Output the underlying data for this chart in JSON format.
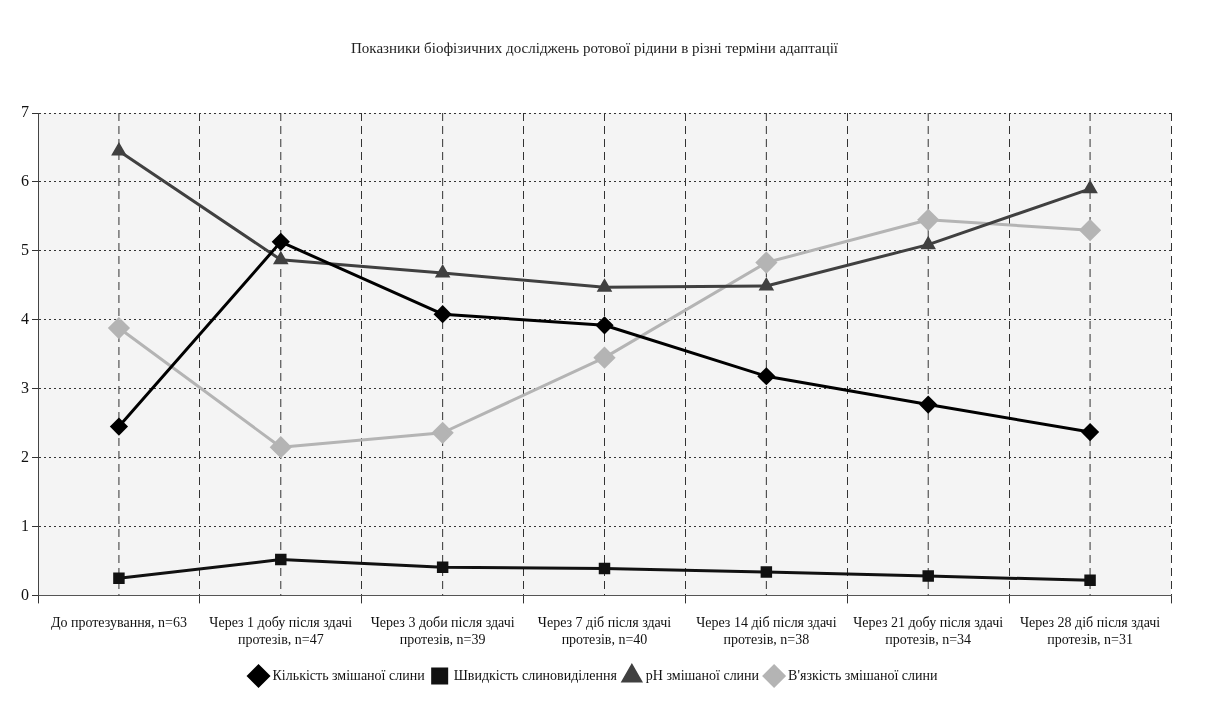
{
  "chart_data": {
    "type": "line",
    "title": "Показники біофізичних досліджень ротової рідини в різні терміни адаптації",
    "categories": [
      "До протезування, n=63",
      "Через 1 добу після здачі протезів, n=47",
      "Через 3 доби після здачі протезів, n=39",
      "Через 7 діб після здачі протезів, n=40",
      "Через 14 діб після здачі протезів, n=38",
      "Через 21 добу після здачі протезів, n=34",
      "Через 28 діб після здачі протезів, n=31"
    ],
    "series": [
      {
        "name": "Кількість змішаної слини",
        "color": "#000000",
        "marker": "diamond",
        "values": [
          2.45,
          5.13,
          4.08,
          3.92,
          3.18,
          2.77,
          2.37
        ]
      },
      {
        "name": "Швидкість слиновиділення",
        "color": "#111111",
        "marker": "square",
        "values": [
          0.25,
          0.52,
          0.41,
          0.39,
          0.34,
          0.28,
          0.22
        ]
      },
      {
        "name": "pH змішаної слини",
        "color": "#404040",
        "marker": "triangle",
        "values": [
          6.45,
          4.87,
          4.68,
          4.47,
          4.49,
          5.09,
          5.9
        ]
      },
      {
        "name": "В'язкість змішаної слини",
        "color": "#b4b4b4",
        "marker": "diamond",
        "values": [
          3.88,
          2.15,
          2.36,
          3.45,
          4.83,
          5.45,
          5.3
        ]
      }
    ],
    "ylim": [
      0,
      7
    ],
    "yticks": [
      0,
      1,
      2,
      3,
      4,
      5,
      6,
      7
    ],
    "grid": true,
    "legend": "bottom"
  }
}
